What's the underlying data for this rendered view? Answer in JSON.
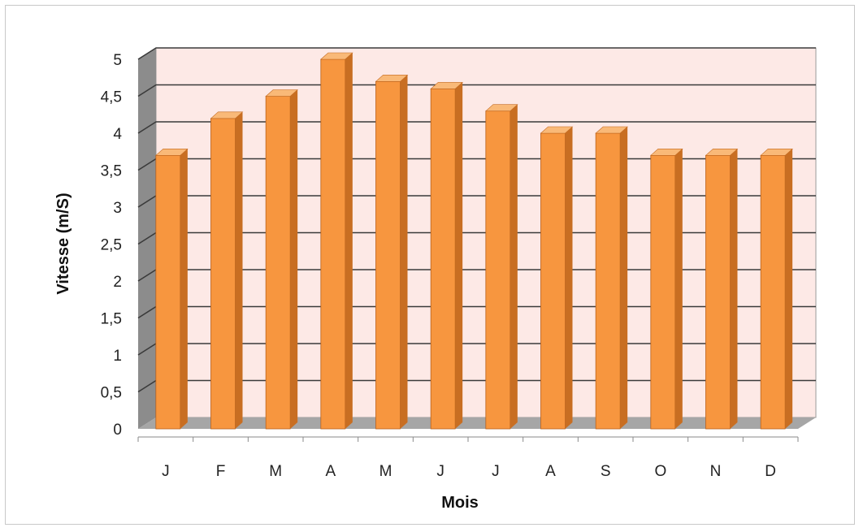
{
  "chart_data": {
    "type": "bar",
    "categories": [
      "J",
      "F",
      "M",
      "A",
      "M",
      "J",
      "J",
      "A",
      "S",
      "O",
      "N",
      "D"
    ],
    "values": [
      3.7,
      4.2,
      4.5,
      5.0,
      4.7,
      4.6,
      4.3,
      4.0,
      4.0,
      3.7,
      3.7,
      3.7
    ],
    "xlabel": "Mois",
    "ylabel": "Vitesse (m/S)",
    "ylim": [
      0,
      5
    ],
    "yticks": [
      "0",
      "0,5",
      "1",
      "1,5",
      "2",
      "2,5",
      "3",
      "3,5",
      "4",
      "4,5",
      "5"
    ],
    "grid": true,
    "style": "3d-column",
    "colors": {
      "bar_front": "#f7963f",
      "bar_top": "#f9b978",
      "bar_side": "#c86e22",
      "wall": "#fde9e6",
      "floor": "#a6a6a6",
      "side_wall": "#8c8c8c",
      "grid": "#3a3a3a"
    }
  }
}
